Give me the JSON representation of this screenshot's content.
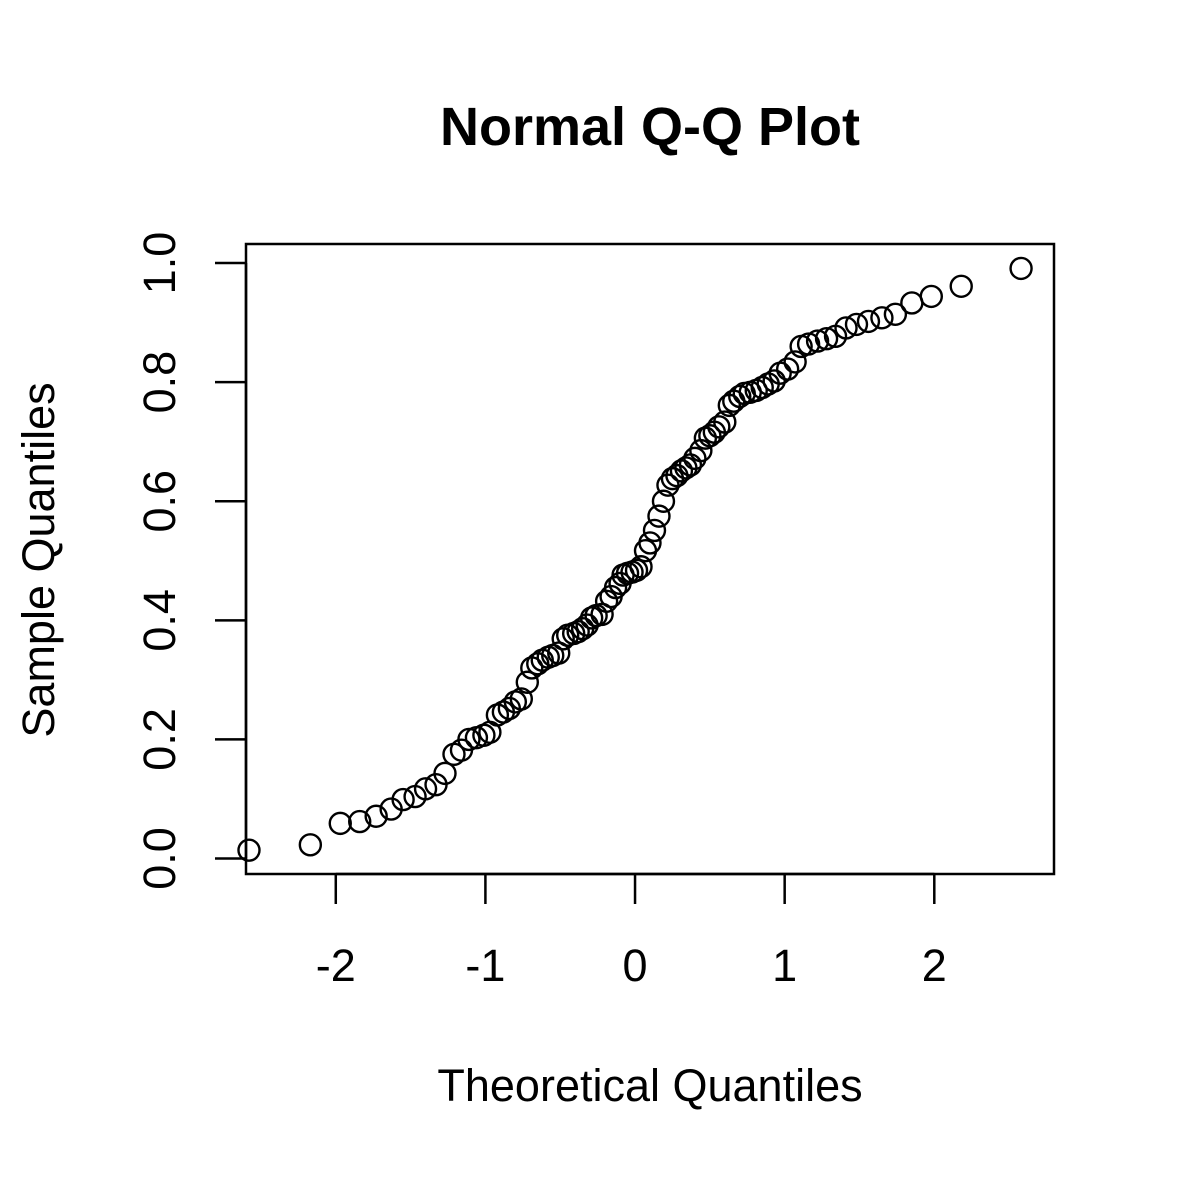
{
  "chart_data": {
    "type": "scatter",
    "title": "Normal Q-Q Plot",
    "xlabel": "Theoretical Quantiles",
    "ylabel": "Sample Quantiles",
    "xlim": [
      -2.6,
      2.8
    ],
    "ylim": [
      -0.026,
      1.032
    ],
    "x_ticks": [
      -2,
      -1,
      0,
      1,
      2
    ],
    "x_tick_labels": [
      "-2",
      "-1",
      "0",
      "1",
      "2"
    ],
    "y_ticks": [
      0.0,
      0.2,
      0.4,
      0.6,
      0.8,
      1.0
    ],
    "y_tick_labels": [
      "0.0",
      "0.2",
      "0.4",
      "0.6",
      "0.8",
      "1.0"
    ],
    "marker": "open-circle",
    "marker_color": "#000000",
    "grid": false,
    "legend": "none",
    "points": [
      [
        -2.58,
        0.014
      ],
      [
        -2.17,
        0.023
      ],
      [
        -1.97,
        0.059
      ],
      [
        -1.84,
        0.062
      ],
      [
        -1.73,
        0.071
      ],
      [
        -1.63,
        0.083
      ],
      [
        -1.55,
        0.099
      ],
      [
        -1.47,
        0.104
      ],
      [
        -1.4,
        0.117
      ],
      [
        -1.33,
        0.124
      ],
      [
        -1.27,
        0.143
      ],
      [
        -1.21,
        0.175
      ],
      [
        -1.16,
        0.182
      ],
      [
        -1.11,
        0.2
      ],
      [
        -1.06,
        0.203
      ],
      [
        -1.01,
        0.207
      ],
      [
        -0.97,
        0.212
      ],
      [
        -0.92,
        0.241
      ],
      [
        -0.88,
        0.246
      ],
      [
        -0.84,
        0.252
      ],
      [
        -0.8,
        0.263
      ],
      [
        -0.76,
        0.268
      ],
      [
        -0.72,
        0.296
      ],
      [
        -0.69,
        0.32
      ],
      [
        -0.65,
        0.327
      ],
      [
        -0.62,
        0.333
      ],
      [
        -0.58,
        0.338
      ],
      [
        -0.55,
        0.341
      ],
      [
        -0.51,
        0.345
      ],
      [
        -0.48,
        0.369
      ],
      [
        -0.45,
        0.375
      ],
      [
        -0.41,
        0.378
      ],
      [
        -0.38,
        0.381
      ],
      [
        -0.35,
        0.386
      ],
      [
        -0.32,
        0.392
      ],
      [
        -0.29,
        0.404
      ],
      [
        -0.26,
        0.408
      ],
      [
        -0.22,
        0.41
      ],
      [
        -0.19,
        0.432
      ],
      [
        -0.16,
        0.44
      ],
      [
        -0.13,
        0.455
      ],
      [
        -0.1,
        0.462
      ],
      [
        -0.08,
        0.476
      ],
      [
        -0.05,
        0.479
      ],
      [
        -0.02,
        0.481
      ],
      [
        0.01,
        0.484
      ],
      [
        0.04,
        0.49
      ],
      [
        0.07,
        0.517
      ],
      [
        0.1,
        0.53
      ],
      [
        0.13,
        0.551
      ],
      [
        0.16,
        0.575
      ],
      [
        0.19,
        0.6
      ],
      [
        0.22,
        0.627
      ],
      [
        0.25,
        0.638
      ],
      [
        0.28,
        0.643
      ],
      [
        0.31,
        0.651
      ],
      [
        0.34,
        0.656
      ],
      [
        0.37,
        0.661
      ],
      [
        0.4,
        0.672
      ],
      [
        0.44,
        0.685
      ],
      [
        0.47,
        0.706
      ],
      [
        0.5,
        0.71
      ],
      [
        0.53,
        0.716
      ],
      [
        0.56,
        0.725
      ],
      [
        0.6,
        0.733
      ],
      [
        0.63,
        0.761
      ],
      [
        0.66,
        0.768
      ],
      [
        0.7,
        0.776
      ],
      [
        0.73,
        0.781
      ],
      [
        0.77,
        0.783
      ],
      [
        0.81,
        0.786
      ],
      [
        0.85,
        0.791
      ],
      [
        0.89,
        0.797
      ],
      [
        0.93,
        0.802
      ],
      [
        0.97,
        0.815
      ],
      [
        1.02,
        0.822
      ],
      [
        1.07,
        0.834
      ],
      [
        1.11,
        0.86
      ],
      [
        1.16,
        0.864
      ],
      [
        1.22,
        0.869
      ],
      [
        1.28,
        0.873
      ],
      [
        1.34,
        0.877
      ],
      [
        1.41,
        0.891
      ],
      [
        1.48,
        0.897
      ],
      [
        1.56,
        0.902
      ],
      [
        1.65,
        0.908
      ],
      [
        1.74,
        0.914
      ],
      [
        1.85,
        0.933
      ],
      [
        1.98,
        0.944
      ],
      [
        2.18,
        0.961
      ],
      [
        2.58,
        0.991
      ]
    ]
  }
}
